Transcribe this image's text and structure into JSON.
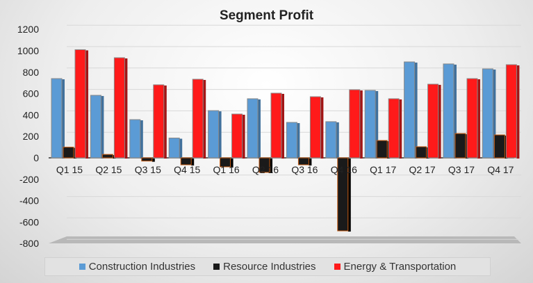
{
  "chart_data": {
    "type": "bar",
    "title": "Segment Profit",
    "xlabel": "",
    "ylabel": "",
    "ylim": [
      -800,
      1200
    ],
    "yticks": [
      "1200",
      "1000",
      "800",
      "600",
      "400",
      "200",
      "0",
      "-200",
      "-400",
      "-600",
      "-800"
    ],
    "grid": true,
    "legend_position": "bottom",
    "categories": [
      "Q1 15",
      "Q2 15",
      "Q3 15",
      "Q4 15",
      "Q1 16",
      "Q2 16",
      "Q3 16",
      "Q4 16",
      "Q1 17",
      "Q2 17",
      "Q3 17",
      "Q4 17"
    ],
    "series": [
      {
        "name": "Construction Industries",
        "color": "#5b9bd5",
        "values": [
          740,
          584,
          357,
          185,
          441,
          552,
          331,
          338,
          630,
          896,
          877,
          831
        ]
      },
      {
        "name": "Resource Industries",
        "color": "#1a1a1a",
        "values": [
          100,
          32,
          -30,
          -65,
          -84,
          -136,
          -65,
          -682,
          162,
          104,
          227,
          214
        ]
      },
      {
        "name": "Energy & Transportation",
        "color": "#ff1a1a",
        "values": [
          1010,
          935,
          682,
          734,
          409,
          604,
          571,
          636,
          552,
          688,
          740,
          870
        ]
      }
    ]
  }
}
